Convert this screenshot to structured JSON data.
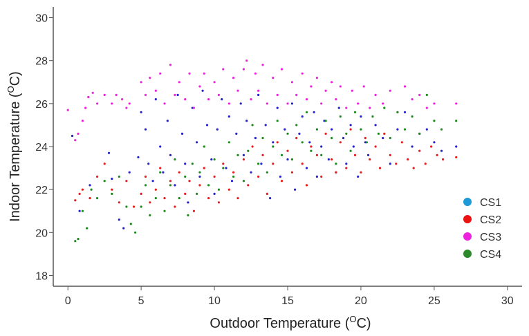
{
  "chart_data": {
    "type": "scatter",
    "title": "",
    "xlabel": {
      "prefix": "Outdoor Temperature (",
      "sup": "O",
      "suffix": "C)"
    },
    "ylabel": {
      "prefix": "Indoor Temperature (",
      "sup": "O",
      "suffix": "C)"
    },
    "xlim": [
      -1,
      31
    ],
    "ylim": [
      17.5,
      30.5
    ],
    "xticks": [
      "0",
      "5",
      "10",
      "15",
      "20",
      "25",
      "30"
    ],
    "yticks": [
      "18",
      "20",
      "22",
      "24",
      "26",
      "28",
      "30"
    ],
    "grid": false,
    "legend_position": "bottom-right",
    "series": [
      {
        "name": "CS1",
        "color": "#2222cc",
        "legend_color": "#1e9ad6",
        "points": [
          [
            0.3,
            24.5
          ],
          [
            0.8,
            21.0
          ],
          [
            1.5,
            22.2
          ],
          [
            2.8,
            23.7
          ],
          [
            3.0,
            22.5
          ],
          [
            3.5,
            20.6
          ],
          [
            3.8,
            20.2
          ],
          [
            4.2,
            22.8
          ],
          [
            4.8,
            23.5
          ],
          [
            5.0,
            25.6
          ],
          [
            5.3,
            24.8
          ],
          [
            5.5,
            23.2
          ],
          [
            5.8,
            22.4
          ],
          [
            6.0,
            26.2
          ],
          [
            6.3,
            24.0
          ],
          [
            6.5,
            22.8
          ],
          [
            6.8,
            25.2
          ],
          [
            7.0,
            23.6
          ],
          [
            7.3,
            22.2
          ],
          [
            7.5,
            26.4
          ],
          [
            7.8,
            24.6
          ],
          [
            8.0,
            23.2
          ],
          [
            8.2,
            21.4
          ],
          [
            8.5,
            25.8
          ],
          [
            8.8,
            24.2
          ],
          [
            9.0,
            22.6
          ],
          [
            9.2,
            26.6
          ],
          [
            9.5,
            25.0
          ],
          [
            9.8,
            23.4
          ],
          [
            10.0,
            21.8
          ],
          [
            10.2,
            24.8
          ],
          [
            10.5,
            26.2
          ],
          [
            10.8,
            23.0
          ],
          [
            11.0,
            25.4
          ],
          [
            11.2,
            22.4
          ],
          [
            11.5,
            24.6
          ],
          [
            11.8,
            26.0
          ],
          [
            12.0,
            23.6
          ],
          [
            12.2,
            25.2
          ],
          [
            12.5,
            22.8
          ],
          [
            12.8,
            24.4
          ],
          [
            13.0,
            26.4
          ],
          [
            13.2,
            23.2
          ],
          [
            13.5,
            25.0
          ],
          [
            13.8,
            21.6
          ],
          [
            14.0,
            24.2
          ],
          [
            14.3,
            25.8
          ],
          [
            14.5,
            22.6
          ],
          [
            14.8,
            24.8
          ],
          [
            15.0,
            23.4
          ],
          [
            15.3,
            26.0
          ],
          [
            15.5,
            22.0
          ],
          [
            15.8,
            24.6
          ],
          [
            16.0,
            25.4
          ],
          [
            16.3,
            23.0
          ],
          [
            16.5,
            24.2
          ],
          [
            16.8,
            25.6
          ],
          [
            17.0,
            22.6
          ],
          [
            17.3,
            24.0
          ],
          [
            17.5,
            25.2
          ],
          [
            17.8,
            23.4
          ],
          [
            18.0,
            24.8
          ],
          [
            18.3,
            22.8
          ],
          [
            18.5,
            25.8
          ],
          [
            18.8,
            24.4
          ],
          [
            19.0,
            23.2
          ],
          [
            19.3,
            25.0
          ],
          [
            19.5,
            24.0
          ],
          [
            19.8,
            22.6
          ],
          [
            20.0,
            25.4
          ],
          [
            20.3,
            24.2
          ],
          [
            20.5,
            23.6
          ],
          [
            21.0,
            25.0
          ],
          [
            21.5,
            24.4
          ],
          [
            22.0,
            23.2
          ],
          [
            22.5,
            24.8
          ],
          [
            23.0,
            25.6
          ],
          [
            23.5,
            24.0
          ],
          [
            24.0,
            24.6
          ],
          [
            24.5,
            24.8
          ],
          [
            25.0,
            24.2
          ],
          [
            25.5,
            23.8
          ],
          [
            26.5,
            24.0
          ]
        ]
      },
      {
        "name": "CS2",
        "color": "#e81c1c",
        "legend_color": "#ee1111",
        "points": [
          [
            0.5,
            21.5
          ],
          [
            0.8,
            21.8
          ],
          [
            1.0,
            22.0
          ],
          [
            1.5,
            21.6
          ],
          [
            2.0,
            22.6
          ],
          [
            2.5,
            23.2
          ],
          [
            3.0,
            22.0
          ],
          [
            3.5,
            21.4
          ],
          [
            4.0,
            22.4
          ],
          [
            4.5,
            21.2
          ],
          [
            5.0,
            21.8
          ],
          [
            5.3,
            22.6
          ],
          [
            5.6,
            21.4
          ],
          [
            6.0,
            22.0
          ],
          [
            6.3,
            23.0
          ],
          [
            6.6,
            21.6
          ],
          [
            7.0,
            22.4
          ],
          [
            7.3,
            21.2
          ],
          [
            7.6,
            22.8
          ],
          [
            8.0,
            21.8
          ],
          [
            8.3,
            22.4
          ],
          [
            8.6,
            21.0
          ],
          [
            9.0,
            22.2
          ],
          [
            9.3,
            23.0
          ],
          [
            9.6,
            21.6
          ],
          [
            10.0,
            22.6
          ],
          [
            10.3,
            21.4
          ],
          [
            10.6,
            23.2
          ],
          [
            11.0,
            22.0
          ],
          [
            11.3,
            22.8
          ],
          [
            11.6,
            21.6
          ],
          [
            12.0,
            23.4
          ],
          [
            12.3,
            22.2
          ],
          [
            12.6,
            24.0
          ],
          [
            13.0,
            22.6
          ],
          [
            13.3,
            23.6
          ],
          [
            13.6,
            21.8
          ],
          [
            14.0,
            23.2
          ],
          [
            14.3,
            24.2
          ],
          [
            14.6,
            22.4
          ],
          [
            15.0,
            23.8
          ],
          [
            15.3,
            22.8
          ],
          [
            15.6,
            24.4
          ],
          [
            16.0,
            23.2
          ],
          [
            16.3,
            22.2
          ],
          [
            16.6,
            24.0
          ],
          [
            17.0,
            23.6
          ],
          [
            17.3,
            22.6
          ],
          [
            17.6,
            24.6
          ],
          [
            18.0,
            23.4
          ],
          [
            18.3,
            22.8
          ],
          [
            18.6,
            24.2
          ],
          [
            19.0,
            23.0
          ],
          [
            19.3,
            24.8
          ],
          [
            19.6,
            23.6
          ],
          [
            20.0,
            22.8
          ],
          [
            20.3,
            24.4
          ],
          [
            20.6,
            23.4
          ],
          [
            21.0,
            24.0
          ],
          [
            21.3,
            23.0
          ],
          [
            21.6,
            24.6
          ],
          [
            22.0,
            23.6
          ],
          [
            22.4,
            23.2
          ],
          [
            22.8,
            24.2
          ],
          [
            23.2,
            23.4
          ],
          [
            23.6,
            23.0
          ],
          [
            24.0,
            23.8
          ],
          [
            24.4,
            23.2
          ],
          [
            24.8,
            24.0
          ],
          [
            25.2,
            23.6
          ],
          [
            25.6,
            23.4
          ],
          [
            26.5,
            23.5
          ]
        ]
      },
      {
        "name": "CS3",
        "color": "#ee22dd",
        "legend_color": "#ee22dd",
        "points": [
          [
            0.0,
            25.7
          ],
          [
            0.5,
            24.3
          ],
          [
            0.7,
            24.6
          ],
          [
            1.0,
            25.2
          ],
          [
            1.2,
            25.8
          ],
          [
            1.4,
            26.3
          ],
          [
            1.7,
            26.5
          ],
          [
            2.0,
            26.0
          ],
          [
            2.5,
            26.4
          ],
          [
            3.0,
            26.0
          ],
          [
            3.3,
            26.4
          ],
          [
            3.7,
            26.2
          ],
          [
            4.0,
            25.8
          ],
          [
            4.2,
            26.0
          ],
          [
            5.0,
            27.0
          ],
          [
            5.3,
            26.4
          ],
          [
            5.6,
            27.2
          ],
          [
            6.0,
            26.6
          ],
          [
            6.3,
            27.4
          ],
          [
            6.6,
            26.0
          ],
          [
            7.0,
            27.8
          ],
          [
            7.3,
            26.4
          ],
          [
            7.6,
            27.0
          ],
          [
            8.0,
            26.2
          ],
          [
            8.3,
            27.4
          ],
          [
            8.6,
            25.8
          ],
          [
            9.0,
            26.8
          ],
          [
            9.3,
            27.4
          ],
          [
            9.6,
            26.2
          ],
          [
            10.0,
            27.0
          ],
          [
            10.3,
            26.4
          ],
          [
            10.6,
            27.6
          ],
          [
            11.0,
            26.0
          ],
          [
            11.3,
            27.2
          ],
          [
            11.6,
            26.6
          ],
          [
            12.0,
            27.6
          ],
          [
            12.2,
            28.0
          ],
          [
            12.5,
            26.2
          ],
          [
            12.8,
            27.4
          ],
          [
            13.0,
            26.6
          ],
          [
            13.3,
            27.8
          ],
          [
            13.6,
            26.0
          ],
          [
            14.0,
            27.2
          ],
          [
            14.3,
            26.4
          ],
          [
            14.6,
            27.6
          ],
          [
            15.0,
            26.0
          ],
          [
            15.3,
            27.0
          ],
          [
            15.6,
            26.4
          ],
          [
            16.0,
            27.4
          ],
          [
            16.3,
            26.2
          ],
          [
            16.6,
            26.8
          ],
          [
            17.0,
            27.2
          ],
          [
            17.3,
            26.0
          ],
          [
            17.6,
            26.6
          ],
          [
            18.0,
            27.0
          ],
          [
            18.3,
            26.2
          ],
          [
            18.6,
            26.8
          ],
          [
            19.0,
            25.8
          ],
          [
            19.4,
            26.6
          ],
          [
            19.8,
            26.0
          ],
          [
            20.2,
            26.8
          ],
          [
            20.6,
            25.8
          ],
          [
            21.0,
            26.4
          ],
          [
            21.5,
            26.0
          ],
          [
            22.0,
            26.6
          ],
          [
            22.5,
            25.6
          ],
          [
            23.0,
            26.8
          ],
          [
            23.5,
            26.2
          ],
          [
            24.0,
            26.4
          ],
          [
            24.5,
            25.8
          ],
          [
            25.0,
            26.0
          ],
          [
            26.5,
            26.0
          ]
        ]
      },
      {
        "name": "CS4",
        "color": "#1a8a1a",
        "legend_color": "#2a8a2a",
        "points": [
          [
            0.5,
            19.6
          ],
          [
            0.7,
            19.7
          ],
          [
            1.0,
            21.0
          ],
          [
            1.3,
            20.2
          ],
          [
            1.6,
            22.0
          ],
          [
            2.0,
            21.6
          ],
          [
            2.5,
            22.4
          ],
          [
            3.0,
            21.8
          ],
          [
            3.5,
            22.6
          ],
          [
            4.0,
            21.2
          ],
          [
            4.3,
            20.4
          ],
          [
            4.6,
            20.0
          ],
          [
            5.0,
            21.2
          ],
          [
            5.3,
            22.2
          ],
          [
            5.6,
            20.8
          ],
          [
            6.0,
            21.6
          ],
          [
            6.3,
            22.8
          ],
          [
            6.6,
            21.0
          ],
          [
            7.0,
            22.2
          ],
          [
            7.3,
            23.4
          ],
          [
            7.6,
            21.6
          ],
          [
            8.0,
            22.6
          ],
          [
            8.2,
            20.8
          ],
          [
            8.5,
            23.2
          ],
          [
            8.8,
            21.8
          ],
          [
            9.0,
            22.8
          ],
          [
            9.3,
            24.0
          ],
          [
            9.6,
            22.2
          ],
          [
            10.0,
            23.4
          ],
          [
            10.3,
            22.0
          ],
          [
            10.6,
            23.0
          ],
          [
            11.0,
            24.2
          ],
          [
            11.3,
            22.6
          ],
          [
            11.6,
            23.6
          ],
          [
            12.0,
            22.4
          ],
          [
            12.3,
            23.8
          ],
          [
            12.6,
            25.0
          ],
          [
            13.0,
            23.2
          ],
          [
            13.3,
            24.4
          ],
          [
            13.6,
            22.8
          ],
          [
            14.0,
            24.0
          ],
          [
            14.3,
            25.2
          ],
          [
            14.6,
            23.6
          ],
          [
            15.0,
            24.6
          ],
          [
            15.3,
            23.4
          ],
          [
            15.6,
            25.0
          ],
          [
            16.0,
            24.2
          ],
          [
            16.3,
            25.6
          ],
          [
            16.6,
            23.8
          ],
          [
            17.0,
            24.8
          ],
          [
            17.3,
            23.6
          ],
          [
            17.6,
            25.2
          ],
          [
            18.0,
            24.4
          ],
          [
            18.3,
            23.2
          ],
          [
            18.6,
            25.4
          ],
          [
            19.0,
            24.6
          ],
          [
            19.3,
            23.8
          ],
          [
            19.6,
            25.6
          ],
          [
            20.0,
            24.8
          ],
          [
            20.4,
            24.2
          ],
          [
            20.8,
            25.4
          ],
          [
            21.2,
            24.6
          ],
          [
            21.6,
            25.8
          ],
          [
            22.0,
            24.4
          ],
          [
            22.5,
            25.6
          ],
          [
            23.0,
            24.8
          ],
          [
            23.5,
            25.4
          ],
          [
            24.0,
            24.6
          ],
          [
            24.5,
            26.4
          ],
          [
            25.0,
            25.2
          ],
          [
            25.5,
            24.8
          ],
          [
            26.5,
            25.2
          ]
        ]
      }
    ]
  }
}
